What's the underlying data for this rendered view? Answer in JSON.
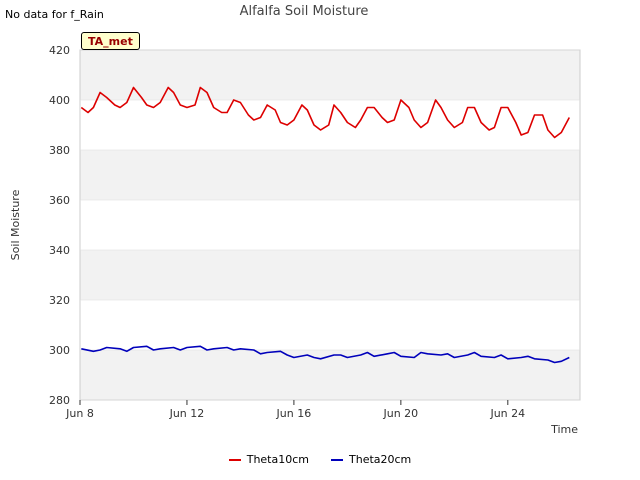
{
  "header": {
    "no_data_note": "No data for f_Rain",
    "site_badge": "TA_met"
  },
  "colors": {
    "theta10": "#dd0000",
    "theta20": "#0000bb",
    "band": "#f2f2f2",
    "grid": "#dddddd"
  },
  "chart_data": {
    "type": "line",
    "title": "Alfalfa Soil Moisture",
    "xlabel": "Time",
    "ylabel": "Soil Moisture",
    "ylim": [
      280,
      420
    ],
    "yticks": [
      280,
      300,
      320,
      340,
      360,
      380,
      400,
      420
    ],
    "xlim_days": [
      8,
      26.7
    ],
    "xticks": [
      {
        "day": 8,
        "label": "Jun 8"
      },
      {
        "day": 12,
        "label": "Jun 12"
      },
      {
        "day": 16,
        "label": "Jun 16"
      },
      {
        "day": 20,
        "label": "Jun 20"
      },
      {
        "day": 24,
        "label": "Jun 24"
      }
    ],
    "series": [
      {
        "name": "Theta10cm",
        "color": "#dd0000",
        "x": [
          8.05,
          8.3,
          8.5,
          8.75,
          9.0,
          9.3,
          9.5,
          9.75,
          10.0,
          10.3,
          10.5,
          10.75,
          11.0,
          11.3,
          11.5,
          11.75,
          12.0,
          12.3,
          12.5,
          12.75,
          13.0,
          13.3,
          13.5,
          13.75,
          14.0,
          14.3,
          14.5,
          14.75,
          15.0,
          15.3,
          15.5,
          15.75,
          16.0,
          16.3,
          16.5,
          16.75,
          17.0,
          17.3,
          17.5,
          17.75,
          18.0,
          18.3,
          18.5,
          18.75,
          19.0,
          19.3,
          19.5,
          19.75,
          20.0,
          20.3,
          20.5,
          20.75,
          21.0,
          21.3,
          21.5,
          21.75,
          22.0,
          22.3,
          22.5,
          22.75,
          23.0,
          23.3,
          23.5,
          23.75,
          24.0,
          24.3,
          24.5,
          24.75,
          25.0,
          25.3,
          25.5,
          25.75,
          26.0,
          26.3
        ],
        "values": [
          397,
          395,
          397,
          403,
          401,
          398,
          397,
          399,
          405,
          401,
          398,
          397,
          399,
          405,
          403,
          398,
          397,
          398,
          405,
          403,
          397,
          395,
          395,
          400,
          399,
          394,
          392,
          393,
          398,
          396,
          391,
          390,
          392,
          398,
          396,
          390,
          388,
          390,
          398,
          395,
          391,
          389,
          392,
          397,
          397,
          393,
          391,
          392,
          400,
          397,
          392,
          389,
          391,
          400,
          397,
          392,
          389,
          391,
          397,
          397,
          391,
          388,
          389,
          397,
          397,
          391,
          386,
          387,
          394,
          394,
          388,
          385,
          387,
          393
        ]
      },
      {
        "name": "Theta20cm",
        "color": "#0000bb",
        "x": [
          8.05,
          8.5,
          8.75,
          9.0,
          9.5,
          9.75,
          10.0,
          10.5,
          10.75,
          11.0,
          11.5,
          11.75,
          12.0,
          12.5,
          12.75,
          13.0,
          13.5,
          13.75,
          14.0,
          14.5,
          14.75,
          15.0,
          15.5,
          15.75,
          16.0,
          16.5,
          16.75,
          17.0,
          17.5,
          17.75,
          18.0,
          18.5,
          18.75,
          19.0,
          19.5,
          19.75,
          20.0,
          20.5,
          20.75,
          21.0,
          21.5,
          21.75,
          22.0,
          22.5,
          22.75,
          23.0,
          23.5,
          23.75,
          24.0,
          24.5,
          24.75,
          25.0,
          25.5,
          25.75,
          26.0,
          26.3
        ],
        "values": [
          300.5,
          299.5,
          300,
          301,
          300.5,
          299.5,
          301,
          301.5,
          300,
          300.5,
          301,
          300,
          301,
          301.5,
          300,
          300.5,
          301,
          300,
          300.5,
          300,
          298.5,
          299,
          299.5,
          298,
          297,
          298,
          297,
          296.5,
          298,
          298,
          297,
          298,
          299,
          297.5,
          298.5,
          299,
          297.5,
          297,
          299,
          298.5,
          298,
          298.5,
          297,
          298,
          299,
          297.5,
          297,
          298,
          296.5,
          297,
          297.5,
          296.5,
          296,
          295,
          295.5,
          297
        ]
      }
    ]
  }
}
